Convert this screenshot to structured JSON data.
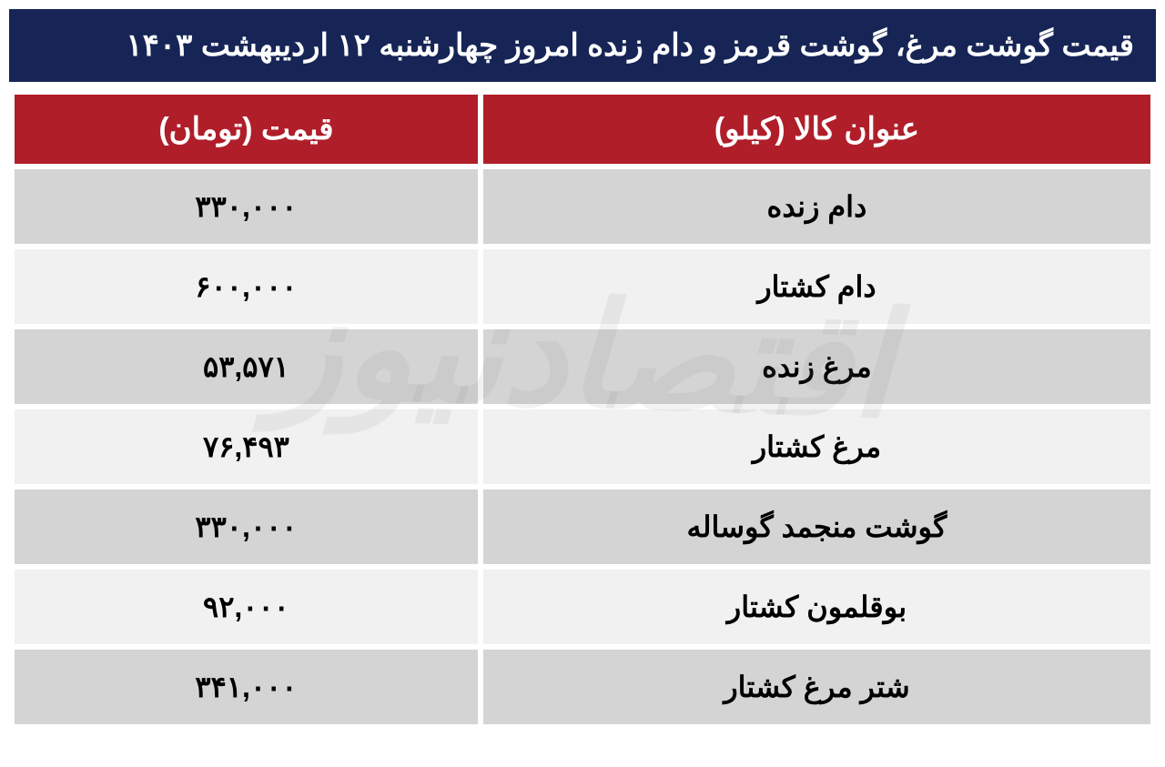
{
  "title": "قیمت گوشت مرغ، گوشت قرمز و دام زنده امروز چهارشنبه ۱۲ اردیبهشت ۱۴۰۳",
  "table": {
    "headers": {
      "item": "عنوان کالا (کیلو)",
      "price": "قیمت (تومان)"
    },
    "rows": [
      {
        "item": "دام زنده",
        "price": "۳۳۰,۰۰۰"
      },
      {
        "item": "دام کشتار",
        "price": "۶۰۰,۰۰۰"
      },
      {
        "item": "مرغ زنده",
        "price": "۵۳,۵۷۱"
      },
      {
        "item": "مرغ کشتار",
        "price": "۷۶,۴۹۳"
      },
      {
        "item": "گوشت منجمد گوساله",
        "price": "۳۳۰,۰۰۰"
      },
      {
        "item": "بوقلمون کشتار",
        "price": "۹۲,۰۰۰"
      },
      {
        "item": "شتر مرغ کشتار",
        "price": "۳۴۱,۰۰۰"
      }
    ],
    "header_bg": "#b01e2a",
    "header_color": "#ffffff",
    "row_odd_bg": "#d4d4d4",
    "row_even_bg": "#f1f1f1",
    "cell_color": "#000000",
    "title_bg": "#162556",
    "title_color": "#ffffff",
    "font_size_title": 34,
    "font_size_header": 34,
    "font_size_cell": 32
  },
  "watermark": "اقتصادنیوز"
}
